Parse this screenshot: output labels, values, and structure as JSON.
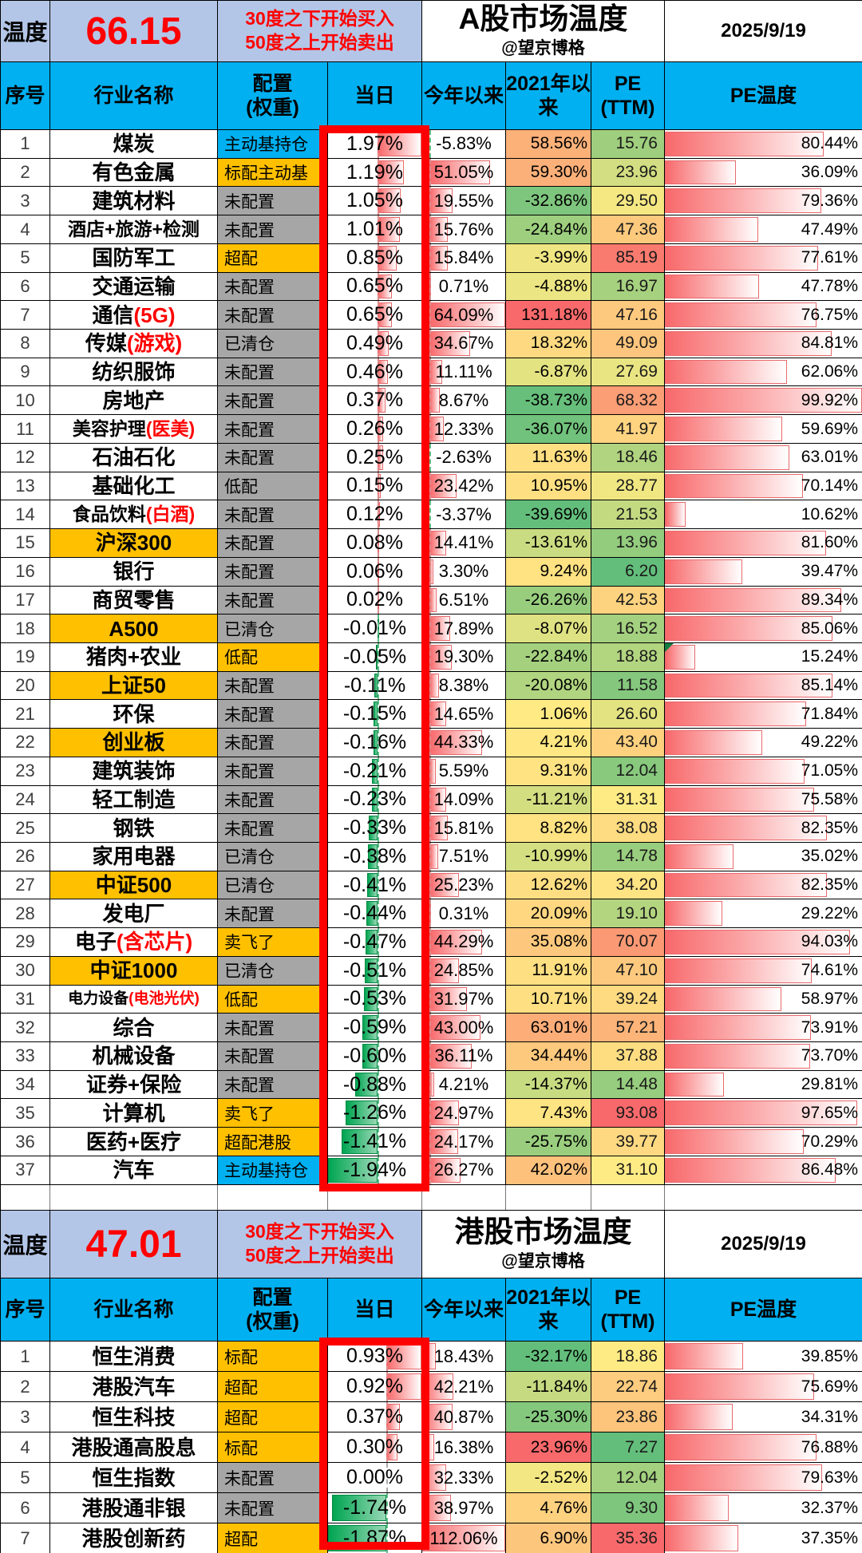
{
  "common": {
    "temp_label": "温度",
    "note1": "30度之下开始买入",
    "note2": "50度之上开始卖出",
    "author": "@望京博格",
    "date": "2025/9/19"
  },
  "columns": [
    "序号",
    "行业名称",
    "配置\n(权重)",
    "当日",
    "今年以来",
    "2021年以\n来",
    "PE\n(TTM)",
    "PE温度"
  ],
  "status_colors": {
    "cyan": "#00b0f0",
    "gold": "#ffc000",
    "gray": "#a6a6a6"
  },
  "scale_colors": {
    "low": "#63be7b",
    "mid": "#ffeb84",
    "high": "#f8696b"
  },
  "tables": [
    {
      "title": "A股市场温度",
      "temperature": "66.15",
      "scales": {
        "y21": {
          "min": -39.69,
          "mid": 0,
          "max": 131.18
        },
        "pe": {
          "min": 6.2,
          "mid": 31.1,
          "max": 93.08
        },
        "day": {
          "min": -1.94,
          "max": 1.97,
          "axis": 0.53
        },
        "ytd": {
          "min": -5.83,
          "max": 64.09,
          "axis": 0.083
        },
        "pet": {
          "min": 0,
          "max": 100
        }
      },
      "rows": [
        {
          "no": 1,
          "name": "煤炭",
          "sfx": "",
          "name_bg": "white",
          "alloc": "主动基持仓",
          "alloc_bg": "cyan",
          "day": 1.97,
          "ytd": -5.83,
          "y21": 58.56,
          "pe": 15.76,
          "pet": 80.44,
          "note": false
        },
        {
          "no": 2,
          "name": "有色金属",
          "sfx": "",
          "name_bg": "white",
          "alloc": "标配主动基",
          "alloc_bg": "gold",
          "day": 1.19,
          "ytd": 51.05,
          "y21": 59.3,
          "pe": 23.96,
          "pet": 36.09,
          "note": false
        },
        {
          "no": 3,
          "name": "建筑材料",
          "sfx": "",
          "name_bg": "white",
          "alloc": "未配置",
          "alloc_bg": "gray",
          "day": 1.05,
          "ytd": 19.55,
          "y21": -32.86,
          "pe": 29.5,
          "pet": 79.36,
          "note": false
        },
        {
          "no": 4,
          "name": "酒店+旅游+检测",
          "sfx": "",
          "name_bg": "white",
          "alloc": "未配置",
          "alloc_bg": "gray",
          "day": 1.01,
          "ytd": 15.76,
          "y21": -24.84,
          "pe": 47.36,
          "pet": 47.49,
          "note": false
        },
        {
          "no": 5,
          "name": "国防军工",
          "sfx": "",
          "name_bg": "white",
          "alloc": "超配",
          "alloc_bg": "gold",
          "day": 0.85,
          "ytd": 15.84,
          "y21": -3.99,
          "pe": 85.19,
          "pet": 77.61,
          "note": false
        },
        {
          "no": 6,
          "name": "交通运输",
          "sfx": "",
          "name_bg": "white",
          "alloc": "未配置",
          "alloc_bg": "gray",
          "day": 0.65,
          "ytd": 0.71,
          "y21": -4.88,
          "pe": 16.97,
          "pet": 47.78,
          "note": false
        },
        {
          "no": 7,
          "name": "通信",
          "sfx": "(5G)",
          "name_bg": "white",
          "alloc": "未配置",
          "alloc_bg": "gray",
          "day": 0.65,
          "ytd": 64.09,
          "y21": 131.18,
          "pe": 47.16,
          "pet": 76.75,
          "note": false
        },
        {
          "no": 8,
          "name": "传媒",
          "sfx": "(游戏)",
          "name_bg": "white",
          "alloc": "已清仓",
          "alloc_bg": "gray",
          "day": 0.49,
          "ytd": 34.67,
          "y21": 18.32,
          "pe": 49.09,
          "pet": 84.81,
          "note": false
        },
        {
          "no": 9,
          "name": "纺织服饰",
          "sfx": "",
          "name_bg": "white",
          "alloc": "未配置",
          "alloc_bg": "gray",
          "day": 0.46,
          "ytd": 11.11,
          "y21": -6.87,
          "pe": 27.69,
          "pet": 62.06,
          "note": false
        },
        {
          "no": 10,
          "name": "房地产",
          "sfx": "",
          "name_bg": "white",
          "alloc": "未配置",
          "alloc_bg": "gray",
          "day": 0.37,
          "ytd": 8.67,
          "y21": -38.73,
          "pe": 68.32,
          "pet": 99.92,
          "note": false
        },
        {
          "no": 11,
          "name": "美容护理",
          "sfx": "(医美)",
          "name_bg": "white",
          "alloc": "未配置",
          "alloc_bg": "gray",
          "day": 0.26,
          "ytd": 12.33,
          "y21": -36.07,
          "pe": 41.97,
          "pet": 59.69,
          "note": false
        },
        {
          "no": 12,
          "name": "石油石化",
          "sfx": "",
          "name_bg": "white",
          "alloc": "未配置",
          "alloc_bg": "gray",
          "day": 0.25,
          "ytd": -2.63,
          "y21": 11.63,
          "pe": 18.46,
          "pet": 63.01,
          "note": false
        },
        {
          "no": 13,
          "name": "基础化工",
          "sfx": "",
          "name_bg": "white",
          "alloc": "低配",
          "alloc_bg": "gray",
          "day": 0.15,
          "ytd": 23.42,
          "y21": 10.95,
          "pe": 28.77,
          "pet": 70.14,
          "note": false
        },
        {
          "no": 14,
          "name": "食品饮料",
          "sfx": "(白酒)",
          "name_bg": "white",
          "alloc": "未配置",
          "alloc_bg": "gray",
          "day": 0.12,
          "ytd": -3.37,
          "y21": -39.69,
          "pe": 21.53,
          "pet": 10.62,
          "note": false
        },
        {
          "no": 15,
          "name": "沪深300",
          "sfx": "",
          "name_bg": "gold",
          "alloc": "未配置",
          "alloc_bg": "gray",
          "day": 0.08,
          "ytd": 14.41,
          "y21": -13.61,
          "pe": 13.96,
          "pet": 81.6,
          "note": false
        },
        {
          "no": 16,
          "name": "银行",
          "sfx": "",
          "name_bg": "white",
          "alloc": "未配置",
          "alloc_bg": "gray",
          "day": 0.06,
          "ytd": 3.3,
          "y21": 9.24,
          "pe": 6.2,
          "pet": 39.47,
          "note": false
        },
        {
          "no": 17,
          "name": "商贸零售",
          "sfx": "",
          "name_bg": "white",
          "alloc": "未配置",
          "alloc_bg": "gray",
          "day": 0.02,
          "ytd": 6.51,
          "y21": -26.26,
          "pe": 42.53,
          "pet": 89.34,
          "note": false
        },
        {
          "no": 18,
          "name": "A500",
          "sfx": "",
          "name_bg": "gold",
          "alloc": "已清仓",
          "alloc_bg": "gray",
          "day": -0.01,
          "ytd": 17.89,
          "y21": -8.07,
          "pe": 16.52,
          "pet": 85.06,
          "note": false
        },
        {
          "no": 19,
          "name": "猪肉+农业",
          "sfx": "",
          "name_bg": "white",
          "alloc": "低配",
          "alloc_bg": "gold",
          "day": -0.05,
          "ytd": 19.3,
          "y21": -22.84,
          "pe": 18.88,
          "pet": 15.24,
          "note": true
        },
        {
          "no": 20,
          "name": "上证50",
          "sfx": "",
          "name_bg": "gold",
          "alloc": "未配置",
          "alloc_bg": "gray",
          "day": -0.11,
          "ytd": 8.38,
          "y21": -20.08,
          "pe": 11.58,
          "pet": 85.14,
          "note": false
        },
        {
          "no": 21,
          "name": "环保",
          "sfx": "",
          "name_bg": "white",
          "alloc": "未配置",
          "alloc_bg": "gray",
          "day": -0.15,
          "ytd": 14.65,
          "y21": 1.06,
          "pe": 26.6,
          "pet": 71.84,
          "note": false
        },
        {
          "no": 22,
          "name": "创业板",
          "sfx": "",
          "name_bg": "gold",
          "alloc": "未配置",
          "alloc_bg": "gray",
          "day": -0.16,
          "ytd": 44.33,
          "y21": 4.21,
          "pe": 43.4,
          "pet": 49.22,
          "note": false
        },
        {
          "no": 23,
          "name": "建筑装饰",
          "sfx": "",
          "name_bg": "white",
          "alloc": "未配置",
          "alloc_bg": "gray",
          "day": -0.21,
          "ytd": 5.59,
          "y21": 9.31,
          "pe": 12.04,
          "pet": 71.05,
          "note": false
        },
        {
          "no": 24,
          "name": "轻工制造",
          "sfx": "",
          "name_bg": "white",
          "alloc": "未配置",
          "alloc_bg": "gray",
          "day": -0.23,
          "ytd": 14.09,
          "y21": -11.21,
          "pe": 31.31,
          "pet": 75.58,
          "note": false
        },
        {
          "no": 25,
          "name": "钢铁",
          "sfx": "",
          "name_bg": "white",
          "alloc": "未配置",
          "alloc_bg": "gray",
          "day": -0.33,
          "ytd": 15.81,
          "y21": 8.82,
          "pe": 38.08,
          "pet": 82.35,
          "note": false
        },
        {
          "no": 26,
          "name": "家用电器",
          "sfx": "",
          "name_bg": "white",
          "alloc": "已清仓",
          "alloc_bg": "gray",
          "day": -0.38,
          "ytd": 7.51,
          "y21": -10.99,
          "pe": 14.78,
          "pet": 35.02,
          "note": false
        },
        {
          "no": 27,
          "name": "中证500",
          "sfx": "",
          "name_bg": "gold",
          "alloc": "已清仓",
          "alloc_bg": "gray",
          "day": -0.41,
          "ytd": 25.23,
          "y21": 12.62,
          "pe": 34.2,
          "pet": 82.35,
          "note": false
        },
        {
          "no": 28,
          "name": "发电厂",
          "sfx": "",
          "name_bg": "white",
          "alloc": "未配置",
          "alloc_bg": "gray",
          "day": -0.44,
          "ytd": 0.31,
          "y21": 20.09,
          "pe": 19.1,
          "pet": 29.22,
          "note": false
        },
        {
          "no": 29,
          "name": "电子",
          "sfx": "(含芯片)",
          "name_bg": "white",
          "alloc": "卖飞了",
          "alloc_bg": "gold",
          "day": -0.47,
          "ytd": 44.29,
          "y21": 35.08,
          "pe": 70.07,
          "pet": 94.03,
          "note": false
        },
        {
          "no": 30,
          "name": "中证1000",
          "sfx": "",
          "name_bg": "gold",
          "alloc": "已清仓",
          "alloc_bg": "gray",
          "day": -0.51,
          "ytd": 24.85,
          "y21": 11.91,
          "pe": 47.1,
          "pet": 74.61,
          "note": false
        },
        {
          "no": 31,
          "name": "电力设备",
          "sfx": "(电池光伏)",
          "name_bg": "white",
          "alloc": "低配",
          "alloc_bg": "gold",
          "day": -0.53,
          "ytd": 31.97,
          "y21": 10.71,
          "pe": 39.24,
          "pet": 58.97,
          "note": false
        },
        {
          "no": 32,
          "name": "综合",
          "sfx": "",
          "name_bg": "white",
          "alloc": "未配置",
          "alloc_bg": "gray",
          "day": -0.59,
          "ytd": 43.0,
          "y21": 63.01,
          "pe": 57.21,
          "pet": 73.91,
          "note": false
        },
        {
          "no": 33,
          "name": "机械设备",
          "sfx": "",
          "name_bg": "white",
          "alloc": "未配置",
          "alloc_bg": "gray",
          "day": -0.6,
          "ytd": 36.11,
          "y21": 34.44,
          "pe": 37.88,
          "pet": 73.7,
          "note": false
        },
        {
          "no": 34,
          "name": "证券+保险",
          "sfx": "",
          "name_bg": "white",
          "alloc": "未配置",
          "alloc_bg": "gray",
          "day": -0.88,
          "ytd": 4.21,
          "y21": -14.37,
          "pe": 14.48,
          "pet": 29.81,
          "note": false
        },
        {
          "no": 35,
          "name": "计算机",
          "sfx": "",
          "name_bg": "white",
          "alloc": "卖飞了",
          "alloc_bg": "gold",
          "day": -1.26,
          "ytd": 24.97,
          "y21": 7.43,
          "pe": 93.08,
          "pet": 97.65,
          "note": false
        },
        {
          "no": 36,
          "name": "医药+医疗",
          "sfx": "",
          "name_bg": "white",
          "alloc": "超配港股",
          "alloc_bg": "gold",
          "day": -1.41,
          "ytd": 24.17,
          "y21": -25.75,
          "pe": 39.77,
          "pet": 70.29,
          "note": false
        },
        {
          "no": 37,
          "name": "汽车",
          "sfx": "",
          "name_bg": "white",
          "alloc": "主动基持仓",
          "alloc_bg": "cyan",
          "day": -1.94,
          "ytd": 26.27,
          "y21": 42.02,
          "pe": 31.1,
          "pet": 86.48,
          "note": false
        }
      ]
    },
    {
      "title": "港股市场温度",
      "temperature": "47.01",
      "scales": {
        "y21": {
          "min": -32.17,
          "mid": 0,
          "max": 23.96
        },
        "pe": {
          "min": 7.27,
          "mid": 18.86,
          "max": 35.36
        },
        "day": {
          "min": -1.87,
          "max": 0.93,
          "axis": 0.62
        },
        "ytd": {
          "min": 0,
          "max": 112.06,
          "axis": 0
        },
        "pet": {
          "min": 0,
          "max": 100
        }
      },
      "rows": [
        {
          "no": 1,
          "name": "恒生消费",
          "sfx": "",
          "name_bg": "white",
          "alloc": "标配",
          "alloc_bg": "gold",
          "day": 0.93,
          "ytd": 18.43,
          "y21": -32.17,
          "pe": 18.86,
          "pet": 39.85,
          "note": false
        },
        {
          "no": 2,
          "name": "港股汽车",
          "sfx": "",
          "name_bg": "white",
          "alloc": "超配",
          "alloc_bg": "gold",
          "day": 0.92,
          "ytd": 42.21,
          "y21": -11.84,
          "pe": 22.74,
          "pet": 75.69,
          "note": false
        },
        {
          "no": 3,
          "name": "恒生科技",
          "sfx": "",
          "name_bg": "white",
          "alloc": "超配",
          "alloc_bg": "gold",
          "day": 0.37,
          "ytd": 40.87,
          "y21": -25.3,
          "pe": 23.86,
          "pet": 34.31,
          "note": false
        },
        {
          "no": 4,
          "name": "港股通高股息",
          "sfx": "",
          "name_bg": "white",
          "alloc": "标配",
          "alloc_bg": "gold",
          "day": 0.3,
          "ytd": 16.38,
          "y21": 23.96,
          "pe": 7.27,
          "pet": 76.88,
          "note": false
        },
        {
          "no": 5,
          "name": "恒生指数",
          "sfx": "",
          "name_bg": "white",
          "alloc": "未配置",
          "alloc_bg": "gray",
          "day": 0.0,
          "ytd": 32.33,
          "y21": -2.52,
          "pe": 12.04,
          "pet": 79.63,
          "note": false
        },
        {
          "no": 6,
          "name": "港股通非银",
          "sfx": "",
          "name_bg": "white",
          "alloc": "未配置",
          "alloc_bg": "gray",
          "day": -1.74,
          "ytd": 38.97,
          "y21": 4.76,
          "pe": 9.3,
          "pet": 32.37,
          "note": false
        },
        {
          "no": 7,
          "name": "港股创新药",
          "sfx": "",
          "name_bg": "white",
          "alloc": "超配",
          "alloc_bg": "gold",
          "day": -1.87,
          "ytd": 112.06,
          "y21": 6.9,
          "pe": 35.36,
          "pet": 37.35,
          "note": false
        }
      ]
    }
  ]
}
